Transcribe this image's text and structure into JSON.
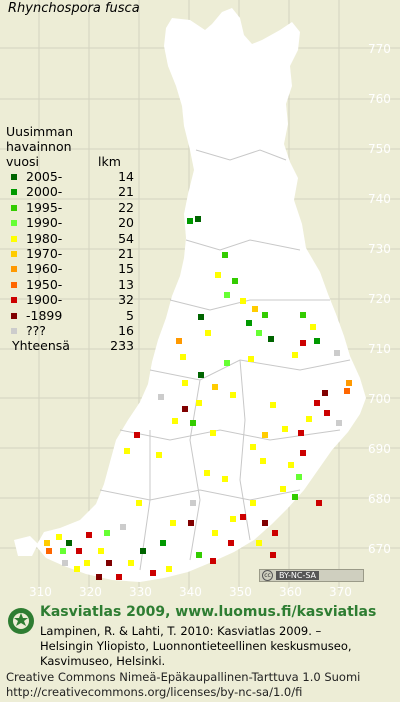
{
  "title": "Rhynchospora fusca",
  "axes": {
    "y_labels": [
      "770",
      "760",
      "750",
      "740",
      "730",
      "720",
      "710",
      "700",
      "690",
      "680",
      "670"
    ],
    "x_labels": [
      "310",
      "320",
      "330",
      "340",
      "350",
      "360",
      "370"
    ]
  },
  "legend": {
    "header_lines": [
      "Uusimman",
      "havainnon",
      "vuosi"
    ],
    "count_header": "lkm",
    "rows": [
      {
        "label": "2005-",
        "count": "14",
        "color": "#006400"
      },
      {
        "label": "2000-",
        "count": "21",
        "color": "#009900"
      },
      {
        "label": "1995-",
        "count": "22",
        "color": "#33cc00"
      },
      {
        "label": "1990-",
        "count": "20",
        "color": "#66ff33"
      },
      {
        "label": "1980-",
        "count": "54",
        "color": "#ffff00"
      },
      {
        "label": "1970-",
        "count": "21",
        "color": "#ffcc00"
      },
      {
        "label": "1960-",
        "count": "15",
        "color": "#ff9900"
      },
      {
        "label": "1950-",
        "count": "13",
        "color": "#ff6600"
      },
      {
        "label": "1900-",
        "count": "32",
        "color": "#cc0000"
      },
      {
        "label": "-1899",
        "count": "5",
        "color": "#800000"
      },
      {
        "label": " ???",
        "count": "16",
        "color": "#cccccc"
      }
    ],
    "total_label": "Yhteensä",
    "total_count": "233"
  },
  "license_badge": "BY-NC-SA",
  "footer": {
    "site": "Kasviatlas 2009, www.luomus.fi/kasviatlas",
    "citation_lines": [
      "Lampinen, R. & Lahti, T. 2010: Kasviatlas 2009. –",
      "Helsingin Yliopisto, Luonnontieteellinen keskusmuseo,",
      "Kasvimuseo, Helsinki."
    ],
    "license_lines": [
      "Creative Commons Nimeä-Epäkaupallinen-Tarttuva 1.0 Suomi",
      "http://creativecommons.org/licenses/by-nc-sa/1.0/fi"
    ]
  },
  "colors": {
    "background": "#ededd6",
    "land": "#ffffff",
    "grid_label": "#ffffff",
    "site_text": "#2e7d32"
  }
}
